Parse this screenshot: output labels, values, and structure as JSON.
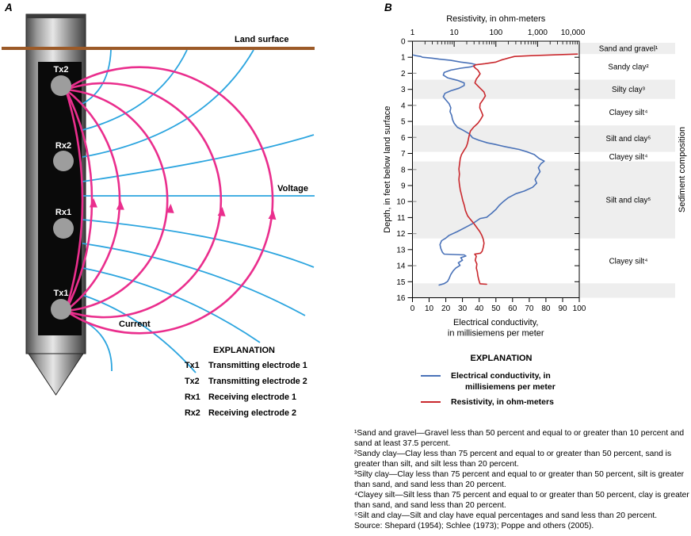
{
  "figure": {
    "panel_a_label": "A",
    "panel_b_label": "B"
  },
  "panel_a": {
    "land_surface_label": "Land surface",
    "voltage_label": "Voltage",
    "current_label": "Current",
    "electrode_labels": [
      "Tx2",
      "Rx2",
      "Rx1",
      "Tx1"
    ],
    "colors": {
      "current_pink": "#ea2e8d",
      "voltage_blue": "#2ca5df",
      "land_brown": "#9c5a28"
    },
    "explanation": {
      "title": "EXPLANATION",
      "items": [
        {
          "symbol": "Tx1",
          "description": "Transmitting electrode 1"
        },
        {
          "symbol": "Tx2",
          "description": "Transmitting electrode 2"
        },
        {
          "symbol": "Rx1",
          "description": "Receiving electrode 1"
        },
        {
          "symbol": "Rx2",
          "description": "Receiving electrode 2"
        }
      ]
    }
  },
  "panel_b": {
    "explanation": {
      "title": "EXPLANATION",
      "entries": [
        {
          "color": "#4a72b8",
          "line1": "Electrical conductivity, in",
          "line2": "millisiemens per meter"
        },
        {
          "color": "#c9282d",
          "line1": "Resistivity, in ohm-meters",
          "line2": ""
        }
      ]
    },
    "footnotes": [
      "¹Sand and gravel—Gravel less than 50 percent and equal to or greater than 10 percent and sand at least 37.5 percent.",
      "²Sandy clay—Clay less than 75 percent and equal to or greater than 50 percent, sand is greater than silt, and silt less than 20 percent.",
      "³Silty clay—Clay less than 75 percent and equal to or greater than 50 percent, silt is greater than sand, and sand less than 20 percent.",
      "⁴Clayey silt—Silt less than 75 percent and equal to or greater than 50 percent, clay is greater than sand, and sand less than 20 percent.",
      "⁵Silt and clay—Silt and clay have equal percentages and sand less than 20 percent.",
      "Source: Shepard (1954); Schlee (1973); Poppe and others (2005)."
    ]
  },
  "chart_data": {
    "type": "line",
    "title": "",
    "grid": false,
    "top_axis": {
      "label": "Resistivity, in ohm-meters",
      "scale": "log",
      "range": [
        1,
        10000
      ],
      "ticks": [
        1,
        10,
        100,
        1000,
        10000
      ],
      "tick_labels": [
        "1",
        "10",
        "100",
        "1,000",
        "10,000"
      ]
    },
    "bottom_axis": {
      "label_line1": "Electrical conductivity,",
      "label_line2": "in millisiemens per meter",
      "scale": "linear",
      "range": [
        0,
        100
      ],
      "tick_step": 10
    },
    "depth_axis": {
      "label": "Depth, in feet below land surface",
      "unit": "feet",
      "range": [
        0,
        16
      ],
      "tick_step": 1
    },
    "right_axis_label": "Sediment composition",
    "band_fill": "#eeeeee",
    "bands": [
      {
        "from": 0.1,
        "to": 0.8,
        "shaded": true,
        "label": "Sand and gravel¹"
      },
      {
        "from": 0.8,
        "to": 2.4,
        "shaded": false,
        "label": "Sandy clay²"
      },
      {
        "from": 2.4,
        "to": 3.6,
        "shaded": true,
        "label": "Silty clay³"
      },
      {
        "from": 3.6,
        "to": 5.25,
        "shaded": false,
        "label": "Clayey silt⁴"
      },
      {
        "from": 5.25,
        "to": 6.9,
        "shaded": true,
        "label": "Silt and clay⁵"
      },
      {
        "from": 6.9,
        "to": 7.5,
        "shaded": false,
        "label": "Clayey silt⁴"
      },
      {
        "from": 7.5,
        "to": 12.3,
        "shaded": true,
        "label": "Silt and clay⁵"
      },
      {
        "from": 12.3,
        "to": 15.1,
        "shaded": false,
        "label": "Clayey silt⁴"
      },
      {
        "from": 15.1,
        "to": 16,
        "shaded": true,
        "label": ""
      }
    ],
    "series": [
      {
        "name": "Electrical conductivity, in millisiemens per meter",
        "axis": "bottom",
        "color": "#4a72b8",
        "points": [
          [
            0.86,
            0.5
          ],
          [
            0.9,
            2
          ],
          [
            0.95,
            5
          ],
          [
            1.0,
            6
          ],
          [
            1.06,
            12
          ],
          [
            1.12,
            16
          ],
          [
            1.19,
            23
          ],
          [
            1.3,
            29
          ],
          [
            1.38,
            35
          ],
          [
            1.46,
            38
          ],
          [
            1.53,
            37
          ],
          [
            1.6,
            35
          ],
          [
            1.68,
            29
          ],
          [
            1.8,
            23
          ],
          [
            1.95,
            19
          ],
          [
            2.11,
            18.5
          ],
          [
            2.28,
            21
          ],
          [
            2.44,
            27
          ],
          [
            2.6,
            31
          ],
          [
            2.76,
            31
          ],
          [
            2.93,
            28
          ],
          [
            3.09,
            23
          ],
          [
            3.25,
            19.5
          ],
          [
            3.46,
            18.5
          ],
          [
            3.66,
            20
          ],
          [
            3.9,
            22
          ],
          [
            4.15,
            23
          ],
          [
            4.39,
            22.5
          ],
          [
            4.63,
            23.5
          ],
          [
            4.88,
            24
          ],
          [
            5.12,
            25
          ],
          [
            5.37,
            27
          ],
          [
            5.53,
            30
          ],
          [
            5.77,
            34
          ],
          [
            6.02,
            36
          ],
          [
            6.18,
            40
          ],
          [
            6.34,
            45
          ],
          [
            6.42,
            49
          ],
          [
            6.59,
            56
          ],
          [
            6.75,
            64
          ],
          [
            6.91,
            69
          ],
          [
            7.07,
            73
          ],
          [
            7.32,
            76
          ],
          [
            7.48,
            79
          ],
          [
            7.64,
            77
          ],
          [
            7.89,
            75.5
          ],
          [
            8.13,
            76.5
          ],
          [
            8.37,
            75
          ],
          [
            8.62,
            73.5
          ],
          [
            8.86,
            74.5
          ],
          [
            9.11,
            72
          ],
          [
            9.35,
            67
          ],
          [
            9.51,
            62
          ],
          [
            9.76,
            57.5
          ],
          [
            10.0,
            54.5
          ],
          [
            10.24,
            52
          ],
          [
            10.49,
            50
          ],
          [
            10.73,
            47.5
          ],
          [
            10.98,
            44.5
          ],
          [
            11.06,
            40.5
          ],
          [
            11.38,
            36
          ],
          [
            11.63,
            31.5
          ],
          [
            11.87,
            27
          ],
          [
            12.11,
            22
          ],
          [
            12.28,
            20
          ],
          [
            12.44,
            17.5
          ],
          [
            12.68,
            16.5
          ],
          [
            12.93,
            17
          ],
          [
            13.17,
            18
          ],
          [
            13.28,
            19
          ],
          [
            13.33,
            31
          ],
          [
            13.4,
            32
          ],
          [
            13.5,
            29
          ],
          [
            13.66,
            30
          ],
          [
            13.82,
            27.5
          ],
          [
            13.98,
            28.5
          ],
          [
            14.15,
            26
          ],
          [
            14.31,
            24.5
          ],
          [
            14.55,
            23
          ],
          [
            14.8,
            22
          ],
          [
            14.99,
            21
          ],
          [
            15.12,
            19
          ],
          [
            15.21,
            16
          ]
        ]
      },
      {
        "name": "Resistivity, in ohm-meters",
        "axis": "top",
        "color": "#c9282d",
        "points": [
          [
            0.8,
            9000
          ],
          [
            0.85,
            2500
          ],
          [
            0.9,
            700
          ],
          [
            0.95,
            280
          ],
          [
            1.05,
            200
          ],
          [
            1.17,
            135
          ],
          [
            1.3,
            100
          ],
          [
            1.4,
            55
          ],
          [
            1.47,
            33
          ],
          [
            1.55,
            29
          ],
          [
            1.7,
            33
          ],
          [
            1.8,
            37
          ],
          [
            2.03,
            42
          ],
          [
            2.2,
            38
          ],
          [
            2.36,
            34
          ],
          [
            2.6,
            31.5
          ],
          [
            2.85,
            39
          ],
          [
            3.17,
            52
          ],
          [
            3.41,
            56
          ],
          [
            3.66,
            49
          ],
          [
            3.9,
            42
          ],
          [
            4.15,
            41
          ],
          [
            4.39,
            45
          ],
          [
            4.63,
            49
          ],
          [
            4.88,
            43
          ],
          [
            5.12,
            37
          ],
          [
            5.37,
            29
          ],
          [
            5.61,
            24.5
          ],
          [
            5.85,
            23
          ],
          [
            6.1,
            22
          ],
          [
            6.34,
            21
          ],
          [
            6.59,
            19.5
          ],
          [
            6.83,
            17
          ],
          [
            7.07,
            15
          ],
          [
            7.32,
            14
          ],
          [
            7.64,
            13.5
          ],
          [
            7.97,
            13
          ],
          [
            8.29,
            13.4
          ],
          [
            8.62,
            13
          ],
          [
            8.94,
            13.4
          ],
          [
            9.27,
            14
          ],
          [
            9.59,
            15
          ],
          [
            9.92,
            16
          ],
          [
            10.24,
            17.5
          ],
          [
            10.57,
            18.7
          ],
          [
            10.89,
            21
          ],
          [
            11.14,
            25
          ],
          [
            11.38,
            30
          ],
          [
            11.63,
            35
          ],
          [
            11.87,
            41
          ],
          [
            12.11,
            46
          ],
          [
            12.36,
            50
          ],
          [
            12.6,
            52
          ],
          [
            12.85,
            50
          ],
          [
            13.09,
            47
          ],
          [
            13.22,
            43
          ],
          [
            13.28,
            31
          ],
          [
            13.41,
            34
          ],
          [
            13.66,
            32
          ],
          [
            13.9,
            35
          ],
          [
            14.15,
            34
          ],
          [
            14.39,
            36
          ],
          [
            14.63,
            37
          ],
          [
            14.88,
            39
          ],
          [
            15.08,
            41
          ],
          [
            15.13,
            42
          ],
          [
            15.16,
            60
          ]
        ]
      }
    ]
  }
}
